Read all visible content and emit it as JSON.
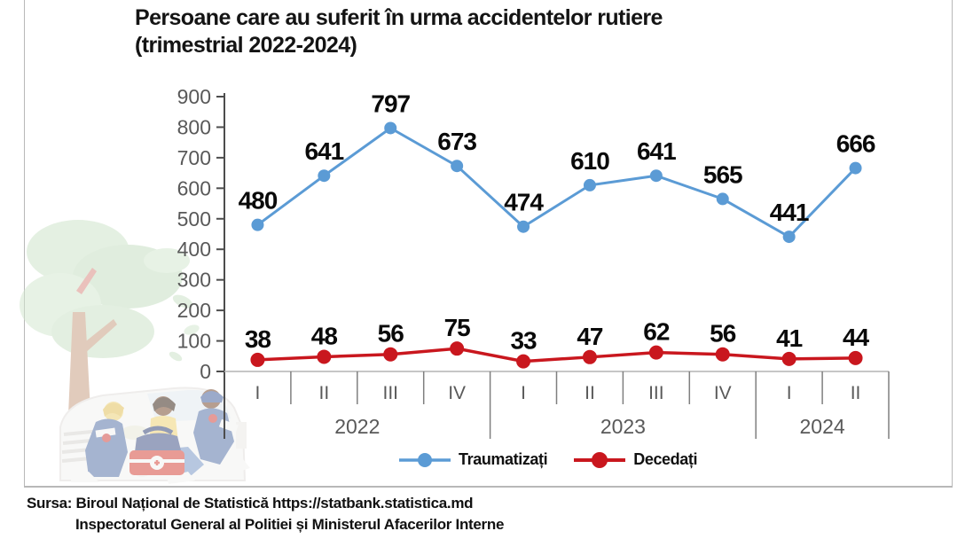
{
  "chart_data": {
    "type": "line",
    "title": "Persoane care au suferit în urma accidentelor rutiere",
    "subtitle": "(trimestrial 2022-2024)",
    "xlabel": "",
    "ylabel": "",
    "ylim": [
      0,
      900
    ],
    "yticks": [
      0,
      100,
      200,
      300,
      400,
      500,
      600,
      700,
      800,
      900
    ],
    "grid": false,
    "legend_position": "bottom",
    "quarters": [
      "I",
      "II",
      "III",
      "IV",
      "I",
      "II",
      "III",
      "IV",
      "I",
      "II"
    ],
    "year_groups": [
      {
        "label": "2022",
        "span": 4
      },
      {
        "label": "2023",
        "span": 4
      },
      {
        "label": "2024",
        "span": 2
      }
    ],
    "series": [
      {
        "name": "Traumatizați",
        "color": "#5b9bd5",
        "values": [
          480,
          641,
          797,
          673,
          474,
          610,
          641,
          565,
          441,
          666
        ]
      },
      {
        "name": "Decedați",
        "color": "#c9171e",
        "values": [
          38,
          48,
          56,
          75,
          33,
          47,
          62,
          56,
          41,
          44
        ]
      }
    ]
  },
  "source": {
    "line1": "Sursa: Biroul Național de Statistică https://statbank.statistica.md",
    "line2": "Inspectoratul General al Politiei și Ministerul Afacerilor Interne"
  },
  "colors": {
    "axis_dark": "#4d4d4d",
    "axis_light": "#b3b3b3",
    "separator": "#7f7f7f",
    "tick_text": "#595959",
    "data_label": "#0a0a0a",
    "frame": "#b8b8b8"
  }
}
